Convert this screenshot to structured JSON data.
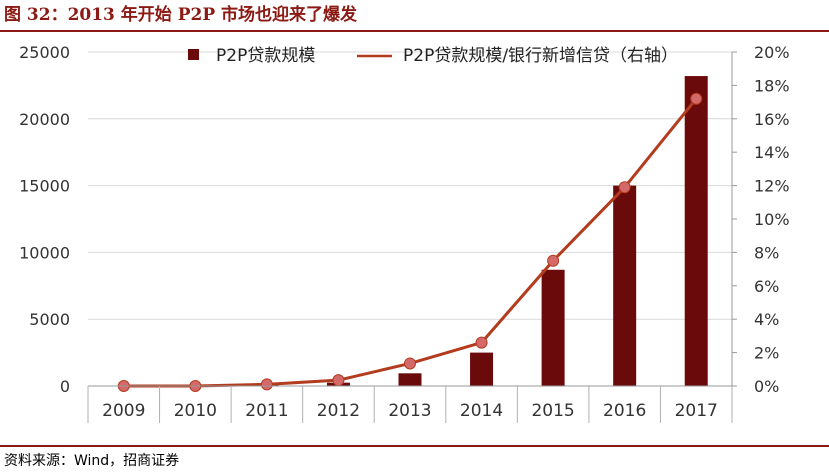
{
  "figure": {
    "title": "图 32：2013 年开始 P2P 市场也迎来了爆发",
    "source": "资料来源：Wind，招商证券"
  },
  "colors": {
    "bar": "#6b0a0a",
    "line": "#b33b1e",
    "marker": "#d4696a",
    "accent": "#8c1a14"
  },
  "chart_data": {
    "type": "bar",
    "categories": [
      "2009",
      "2010",
      "2011",
      "2012",
      "2013",
      "2014",
      "2015",
      "2016",
      "2017"
    ],
    "series": [
      {
        "name": "P2P贷款规模",
        "type": "bar",
        "axis": "left",
        "values": [
          5,
          20,
          100,
          250,
          950,
          2500,
          8700,
          15000,
          23200
        ]
      },
      {
        "name": "P2P贷款规模/银行新增信贷（右轴）",
        "type": "line",
        "axis": "right",
        "values": [
          0.0,
          0.0,
          0.1,
          0.35,
          1.35,
          2.6,
          7.5,
          11.9,
          17.2
        ]
      }
    ],
    "left_axis": {
      "min": 0,
      "max": 25000,
      "ticks": [
        "0",
        "5000",
        "10000",
        "15000",
        "20000",
        "25000"
      ]
    },
    "right_axis": {
      "min": 0,
      "max": 20,
      "unit": "%",
      "ticks": [
        "0%",
        "2%",
        "4%",
        "6%",
        "8%",
        "10%",
        "12%",
        "14%",
        "16%",
        "18%",
        "20%"
      ]
    },
    "grid": true,
    "legend": "top"
  }
}
